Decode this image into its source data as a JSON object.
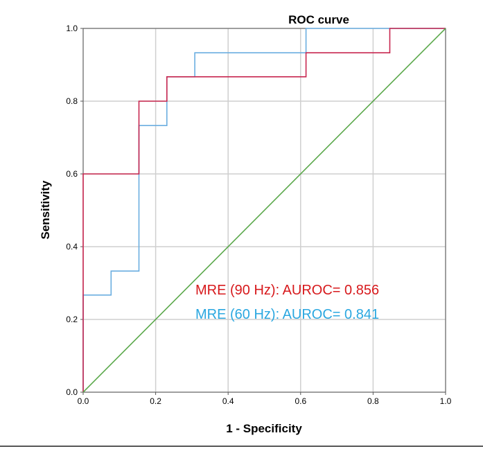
{
  "chart_data": {
    "type": "line",
    "title": "ROC curve",
    "xlabel": "1 - Specificity",
    "ylabel": "Sensitivity",
    "xlim": [
      0,
      1
    ],
    "ylim": [
      0,
      1
    ],
    "xticks": [
      "0.0",
      "0.2",
      "0.4",
      "0.6",
      "0.8",
      "1.0"
    ],
    "yticks": [
      "0.0",
      "0.2",
      "0.4",
      "0.6",
      "0.8",
      "1.0"
    ],
    "grid": true,
    "series": [
      {
        "name": "MRE (60 Hz)",
        "color": "#6aaee0",
        "x": [
          0,
          0,
          0.077,
          0.077,
          0.154,
          0.154,
          0.231,
          0.231,
          0.308,
          0.308,
          0.615,
          0.615,
          1.0
        ],
        "y": [
          0,
          0.267,
          0.267,
          0.333,
          0.333,
          0.733,
          0.733,
          0.867,
          0.867,
          0.933,
          0.933,
          1.0,
          1.0
        ]
      },
      {
        "name": "MRE (90 Hz)",
        "color": "#c8264f",
        "x": [
          0,
          0,
          0.154,
          0.154,
          0.231,
          0.231,
          0.615,
          0.615,
          0.846,
          0.846,
          1.0
        ],
        "y": [
          0,
          0.6,
          0.6,
          0.8,
          0.8,
          0.867,
          0.867,
          0.933,
          0.933,
          1.0,
          1.0
        ]
      },
      {
        "name": "Reference line",
        "color": "#5aa84a",
        "x": [
          0,
          1
        ],
        "y": [
          0,
          1
        ]
      }
    ],
    "annotations": [
      {
        "text": "MRE (90 Hz): AUROC= 0.856",
        "color": "#d7191c"
      },
      {
        "text": "MRE (60 Hz): AUROC= 0.841",
        "color": "#2aa7e0"
      }
    ]
  }
}
